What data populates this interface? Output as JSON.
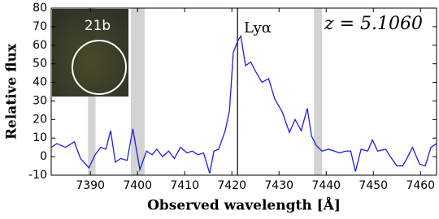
{
  "chart_data": {
    "type": "line",
    "xlabel": "Observed wavelength [Å]",
    "ylabel": "Relative flux",
    "annotation": "z = 5.1060",
    "ref_line": {
      "x": 7421.2,
      "label": "Lyα"
    },
    "inset_label": "21b",
    "bands": [
      [
        7389.5,
        7391.1
      ],
      [
        7398.6,
        7401.5
      ],
      [
        7437.4,
        7439.1
      ]
    ],
    "band_color": "#d3d3d3",
    "x": [
      7381.7,
      7382.9,
      7384.7,
      7386.6,
      7387.9,
      7389.7,
      7391.0,
      7392.2,
      7393.3,
      7394.3,
      7395.3,
      7396.4,
      7397.8,
      7399.0,
      7400.5,
      7401.9,
      7403.1,
      7404.1,
      7405.3,
      7406.6,
      7407.8,
      7409.1,
      7410.5,
      7411.6,
      7412.8,
      7414.0,
      7415.3,
      7416.2,
      7417.2,
      7418.6,
      7419.5,
      7420.3,
      7421.2,
      7421.9,
      7422.9,
      7424.0,
      7425.0,
      7426.4,
      7427.8,
      7429.1,
      7430.7,
      7432.2,
      7433.4,
      7434.7,
      7436.0,
      7436.9,
      7437.9,
      7439.1,
      7440.5,
      7441.7,
      7442.9,
      7444.1,
      7445.2,
      7446.2,
      7447.4,
      7448.8,
      7449.8,
      7450.9,
      7452.6,
      7453.6,
      7455.0,
      7456.2,
      7457.1,
      7458.3,
      7459.8,
      7461.0,
      7462.2,
      7463.4
    ],
    "series": [
      {
        "color": "#1f1fe0",
        "values": [
          5,
          7,
          5,
          8,
          -1,
          -6,
          1,
          5,
          4,
          14,
          -3,
          -1,
          -2,
          15,
          -7,
          3,
          1,
          4,
          0,
          3,
          -1,
          5,
          2,
          3,
          1,
          2,
          -9,
          3,
          4,
          14,
          25,
          56,
          62,
          65,
          49,
          51,
          46,
          40,
          42,
          31,
          24,
          13,
          20,
          14,
          26,
          11,
          6,
          3,
          4,
          3,
          2,
          3,
          3,
          -8,
          4,
          3,
          9,
          3,
          4,
          0,
          -5,
          -5,
          -1,
          5,
          -4,
          -5,
          5,
          7
        ]
      }
    ],
    "xlim": [
      7381.7,
      7463.4
    ],
    "ylim": [
      -10,
      80
    ],
    "xticks": [
      7390,
      7400,
      7410,
      7420,
      7430,
      7440,
      7450,
      7460
    ],
    "yticks": [
      -10,
      0,
      10,
      20,
      30,
      40,
      50,
      60,
      70,
      80
    ]
  }
}
